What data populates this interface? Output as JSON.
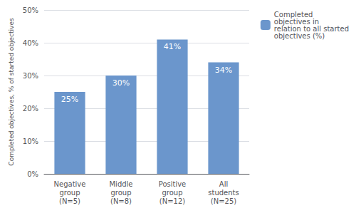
{
  "chart_data": {
    "type": "bar",
    "categories": [
      "Negative\ngroup\n(N=5)",
      "Middle\ngroup\n(N=8)",
      "Positive\ngroup\n(N=12)",
      "All\nstudents\n(N=25)"
    ],
    "series": [
      {
        "name": "Completed\nobjectives in\nrelation to all started\nobjectives (%)",
        "color": "#6b96cc",
        "values": [
          25,
          30,
          41,
          34
        ],
        "value_labels": [
          "25%",
          "30%",
          "41%",
          "34%"
        ]
      }
    ],
    "ylabel": "Completed objectives, % of started objectives",
    "ylim": [
      0,
      50
    ],
    "yticks": [
      {
        "value": 0,
        "label": "0%"
      },
      {
        "value": 10,
        "label": "10%"
      },
      {
        "value": 20,
        "label": "20%"
      },
      {
        "value": 30,
        "label": "30%"
      },
      {
        "value": 40,
        "label": "40%"
      },
      {
        "value": 50,
        "label": "50%"
      }
    ],
    "grid": true,
    "legend": "upper right",
    "data_labels": true
  }
}
